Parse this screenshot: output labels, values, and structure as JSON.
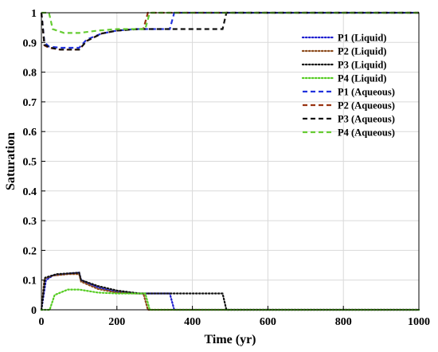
{
  "chart_data": {
    "type": "line",
    "xlabel": "Time (yr)",
    "ylabel": "Saturation",
    "xlim": [
      0,
      1000
    ],
    "ylim": [
      0,
      1
    ],
    "xticks": [
      "0",
      "200",
      "400",
      "600",
      "800",
      "1000"
    ],
    "yticks": [
      "0",
      "0.1",
      "0.2",
      "0.3",
      "0.4",
      "0.5",
      "0.6",
      "0.7",
      "0.8",
      "0.9",
      "1"
    ],
    "grid": true,
    "legend_position": "top-right",
    "series": [
      {
        "name": "P1 (Liquid)",
        "color": "#1f1fd0",
        "style": "dotted",
        "points": [
          [
            0,
            0
          ],
          [
            12,
            0.1
          ],
          [
            30,
            0.115
          ],
          [
            60,
            0.12
          ],
          [
            100,
            0.125
          ],
          [
            105,
            0.1
          ],
          [
            150,
            0.075
          ],
          [
            200,
            0.06
          ],
          [
            250,
            0.055
          ],
          [
            340,
            0.055
          ],
          [
            352,
            0
          ],
          [
            1000,
            0
          ]
        ]
      },
      {
        "name": "P2 (Liquid)",
        "color": "#8b4a1a",
        "style": "dotted",
        "points": [
          [
            0,
            0
          ],
          [
            8,
            0.105
          ],
          [
            30,
            0.115
          ],
          [
            70,
            0.12
          ],
          [
            100,
            0.12
          ],
          [
            105,
            0.095
          ],
          [
            150,
            0.07
          ],
          [
            200,
            0.058
          ],
          [
            250,
            0.055
          ],
          [
            270,
            0.055
          ],
          [
            282,
            0
          ],
          [
            1000,
            0
          ]
        ]
      },
      {
        "name": "P3 (Liquid)",
        "color": "#111111",
        "style": "dotted",
        "points": [
          [
            0,
            0
          ],
          [
            10,
            0.108
          ],
          [
            40,
            0.12
          ],
          [
            100,
            0.125
          ],
          [
            105,
            0.1
          ],
          [
            150,
            0.08
          ],
          [
            200,
            0.065
          ],
          [
            260,
            0.055
          ],
          [
            480,
            0.055
          ],
          [
            490,
            0
          ],
          [
            1000,
            0
          ]
        ]
      },
      {
        "name": "P4 (Liquid)",
        "color": "#55cc22",
        "style": "dotted",
        "points": [
          [
            0,
            0
          ],
          [
            22,
            0
          ],
          [
            35,
            0.05
          ],
          [
            70,
            0.068
          ],
          [
            100,
            0.068
          ],
          [
            150,
            0.058
          ],
          [
            200,
            0.055
          ],
          [
            275,
            0.055
          ],
          [
            287,
            0
          ],
          [
            1000,
            0
          ]
        ]
      },
      {
        "name": "P1 (Aqueous)",
        "color": "#2233dd",
        "style": "dashed",
        "points": [
          [
            0,
            1
          ],
          [
            8,
            0.9
          ],
          [
            20,
            0.886
          ],
          [
            50,
            0.882
          ],
          [
            100,
            0.882
          ],
          [
            120,
            0.91
          ],
          [
            160,
            0.93
          ],
          [
            200,
            0.94
          ],
          [
            250,
            0.945
          ],
          [
            340,
            0.945
          ],
          [
            352,
            1
          ],
          [
            1000,
            1
          ]
        ]
      },
      {
        "name": "P2 (Aqueous)",
        "color": "#993311",
        "style": "dashed",
        "points": [
          [
            0,
            1
          ],
          [
            8,
            0.89
          ],
          [
            20,
            0.882
          ],
          [
            50,
            0.876
          ],
          [
            100,
            0.876
          ],
          [
            120,
            0.905
          ],
          [
            160,
            0.93
          ],
          [
            200,
            0.94
          ],
          [
            250,
            0.945
          ],
          [
            270,
            0.945
          ],
          [
            282,
            1
          ],
          [
            1000,
            1
          ]
        ]
      },
      {
        "name": "P3 (Aqueous)",
        "color": "#111111",
        "style": "dashed",
        "points": [
          [
            0,
            1
          ],
          [
            8,
            0.892
          ],
          [
            25,
            0.882
          ],
          [
            50,
            0.876
          ],
          [
            100,
            0.876
          ],
          [
            120,
            0.905
          ],
          [
            160,
            0.93
          ],
          [
            200,
            0.94
          ],
          [
            260,
            0.945
          ],
          [
            480,
            0.945
          ],
          [
            490,
            1
          ],
          [
            1000,
            1
          ]
        ]
      },
      {
        "name": "P4 (Aqueous)",
        "color": "#66cc33",
        "style": "dashed",
        "points": [
          [
            0,
            1
          ],
          [
            20,
            1
          ],
          [
            30,
            0.945
          ],
          [
            60,
            0.932
          ],
          [
            100,
            0.932
          ],
          [
            150,
            0.94
          ],
          [
            200,
            0.945
          ],
          [
            275,
            0.945
          ],
          [
            287,
            1
          ],
          [
            1000,
            1
          ]
        ]
      }
    ]
  }
}
